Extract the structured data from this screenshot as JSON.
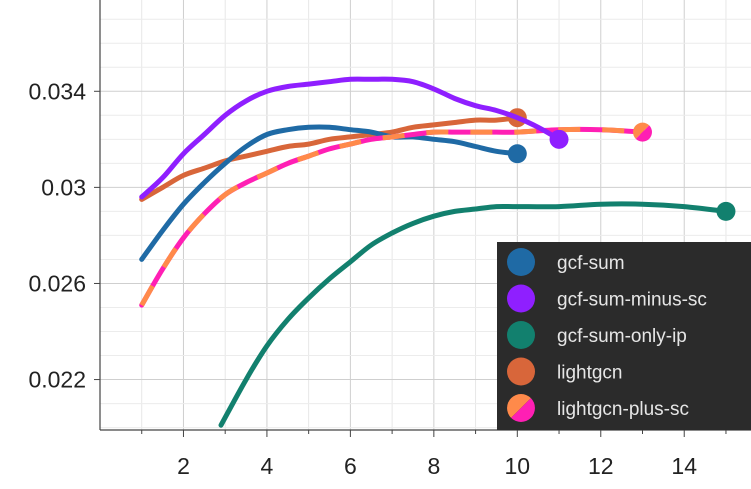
{
  "chart_data": {
    "type": "line",
    "xlim": [
      0,
      15.6
    ],
    "ylim": [
      0.0199,
      0.0378
    ],
    "xticks": [
      2,
      4,
      6,
      8,
      10,
      12,
      14
    ],
    "xtick_labels": [
      "2",
      "4",
      "6",
      "8",
      "10",
      "12",
      "14"
    ],
    "yticks": [
      0.022,
      0.026,
      0.03,
      0.034
    ],
    "ytick_labels": [
      "0.022",
      "0.026",
      "0.03",
      "0.034"
    ],
    "grid": true,
    "legend_position": "bottom-right",
    "series": [
      {
        "name": "gcf-sum",
        "color": "#1f6aa5",
        "x": [
          1,
          1.5,
          2,
          2.5,
          3,
          3.5,
          4,
          4.5,
          5,
          5.5,
          6,
          6.5,
          7,
          7.5,
          8,
          8.5,
          9,
          9.5,
          10
        ],
        "y": [
          0.027,
          0.0282,
          0.0293,
          0.0302,
          0.031,
          0.0317,
          0.0322,
          0.0324,
          0.0325,
          0.0325,
          0.0324,
          0.0323,
          0.0321,
          0.0321,
          0.032,
          0.0319,
          0.0317,
          0.0315,
          0.0314
        ]
      },
      {
        "name": "gcf-sum-minus-sc",
        "color": "#8f1fff",
        "x": [
          1,
          1.5,
          2,
          2.5,
          3,
          3.5,
          4,
          4.5,
          5,
          5.5,
          6,
          6.5,
          7,
          7.5,
          8,
          8.5,
          9,
          9.5,
          10,
          10.5,
          11
        ],
        "y": [
          0.0296,
          0.0304,
          0.0314,
          0.0322,
          0.033,
          0.0336,
          0.034,
          0.0342,
          0.0343,
          0.0344,
          0.0345,
          0.0345,
          0.0345,
          0.0344,
          0.0341,
          0.0337,
          0.0334,
          0.0332,
          0.0329,
          0.0325,
          0.032
        ]
      },
      {
        "name": "gcf-sum-only-ip",
        "color": "#12806e",
        "x": [
          2.9,
          3.5,
          4,
          4.5,
          5,
          5.5,
          6,
          6.5,
          7,
          7.5,
          8,
          8.5,
          9,
          9.5,
          10,
          11,
          12,
          13,
          14,
          15
        ],
        "y": [
          0.0201,
          0.022,
          0.0234,
          0.0245,
          0.0254,
          0.0262,
          0.0269,
          0.0276,
          0.0281,
          0.0285,
          0.0288,
          0.029,
          0.0291,
          0.0292,
          0.0292,
          0.0292,
          0.0293,
          0.0293,
          0.0292,
          0.029
        ]
      },
      {
        "name": "lightgcn",
        "color": "#d8663a",
        "x": [
          1,
          1.5,
          2,
          2.5,
          3,
          3.5,
          4,
          4.5,
          5,
          5.5,
          6,
          6.5,
          7,
          7.5,
          8,
          8.5,
          9,
          9.5,
          10
        ],
        "y": [
          0.0295,
          0.03,
          0.0305,
          0.0308,
          0.0311,
          0.0313,
          0.0315,
          0.0317,
          0.0318,
          0.032,
          0.0321,
          0.0322,
          0.0323,
          0.0325,
          0.0326,
          0.0327,
          0.0328,
          0.0328,
          0.0329
        ]
      },
      {
        "name": "lightgcn-plus-sc",
        "color": "#ff1fb4",
        "color2": "#ff8a4a",
        "x": [
          1,
          1.5,
          2,
          2.5,
          3,
          3.5,
          4,
          4.5,
          5,
          5.5,
          6,
          6.5,
          7,
          7.5,
          8,
          8.5,
          9,
          9.5,
          10,
          11,
          12,
          13
        ],
        "y": [
          0.0251,
          0.0266,
          0.0279,
          0.0289,
          0.0297,
          0.0302,
          0.0306,
          0.031,
          0.0313,
          0.0316,
          0.0318,
          0.032,
          0.0321,
          0.0322,
          0.0323,
          0.0323,
          0.0323,
          0.0323,
          0.0323,
          0.0324,
          0.0324,
          0.0323
        ]
      }
    ]
  },
  "legend": {
    "items": [
      {
        "label": "gcf-sum",
        "color": "#1f6aa5"
      },
      {
        "label": "gcf-sum-minus-sc",
        "color": "#8f1fff"
      },
      {
        "label": "gcf-sum-only-ip",
        "color": "#12806e"
      },
      {
        "label": "lightgcn",
        "color": "#d8663a"
      },
      {
        "label": "lightgcn-plus-sc",
        "color": "#ff1fb4",
        "color2": "#ff8a4a"
      }
    ],
    "background": "#2b2b2b"
  }
}
